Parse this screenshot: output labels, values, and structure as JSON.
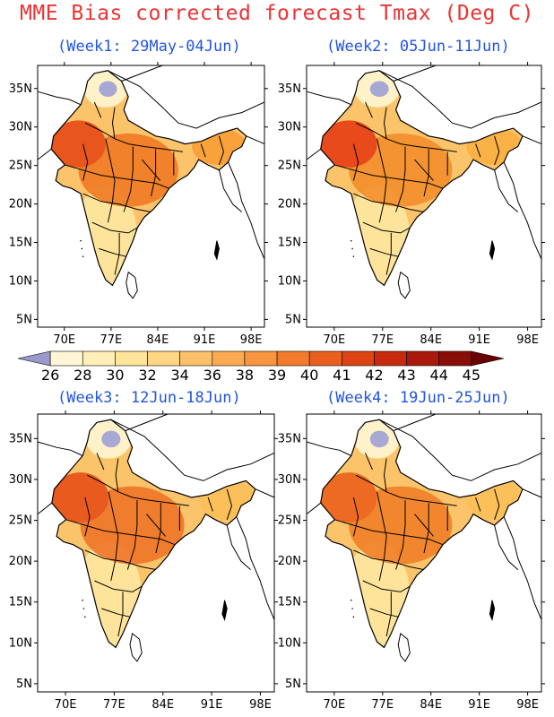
{
  "title": "MME Bias corrected forecast Tmax (Deg C)",
  "colors": {
    "title": "#ee3333",
    "subtitle": "#2255dd",
    "outline": "#000000",
    "sea": "#ffffff"
  },
  "panels": [
    {
      "title": "(Week1: 29May-04Jun)",
      "north_heat": "#e8561e",
      "central_heat": "#f07a24",
      "ne_fill": "#f9a23c"
    },
    {
      "title": "(Week2: 05Jun-11Jun)",
      "north_heat": "#e84a1c",
      "central_heat": "#f28e2c",
      "ne_fill": "#fab246"
    },
    {
      "title": "(Week3: 12Jun-18Jun)",
      "north_heat": "#e85a1e",
      "central_heat": "#ee7428",
      "ne_fill": "#fbc05a"
    },
    {
      "title": "(Week4: 19Jun-25Jun)",
      "north_heat": "#ec6a22",
      "central_heat": "#f08028",
      "ne_fill": "#fbc05a"
    }
  ],
  "axes": {
    "lon_labels": [
      "70E",
      "77E",
      "84E",
      "91E",
      "98E"
    ],
    "lat_labels": [
      "35N",
      "30N",
      "25N",
      "20N",
      "15N",
      "10N",
      "5N"
    ]
  },
  "colorbar": {
    "levels": [
      "26",
      "28",
      "30",
      "32",
      "34",
      "36",
      "38",
      "39",
      "40",
      "41",
      "42",
      "43",
      "44",
      "45"
    ],
    "colors": [
      "#9999cc",
      "#fff6d6",
      "#ffefb8",
      "#fee59a",
      "#fed684",
      "#fdc06a",
      "#fcaa52",
      "#f99440",
      "#f27a2c",
      "#e9601e",
      "#dc4414",
      "#c82a10",
      "#aa1a0c",
      "#8a0e08",
      "#6a0404"
    ]
  }
}
